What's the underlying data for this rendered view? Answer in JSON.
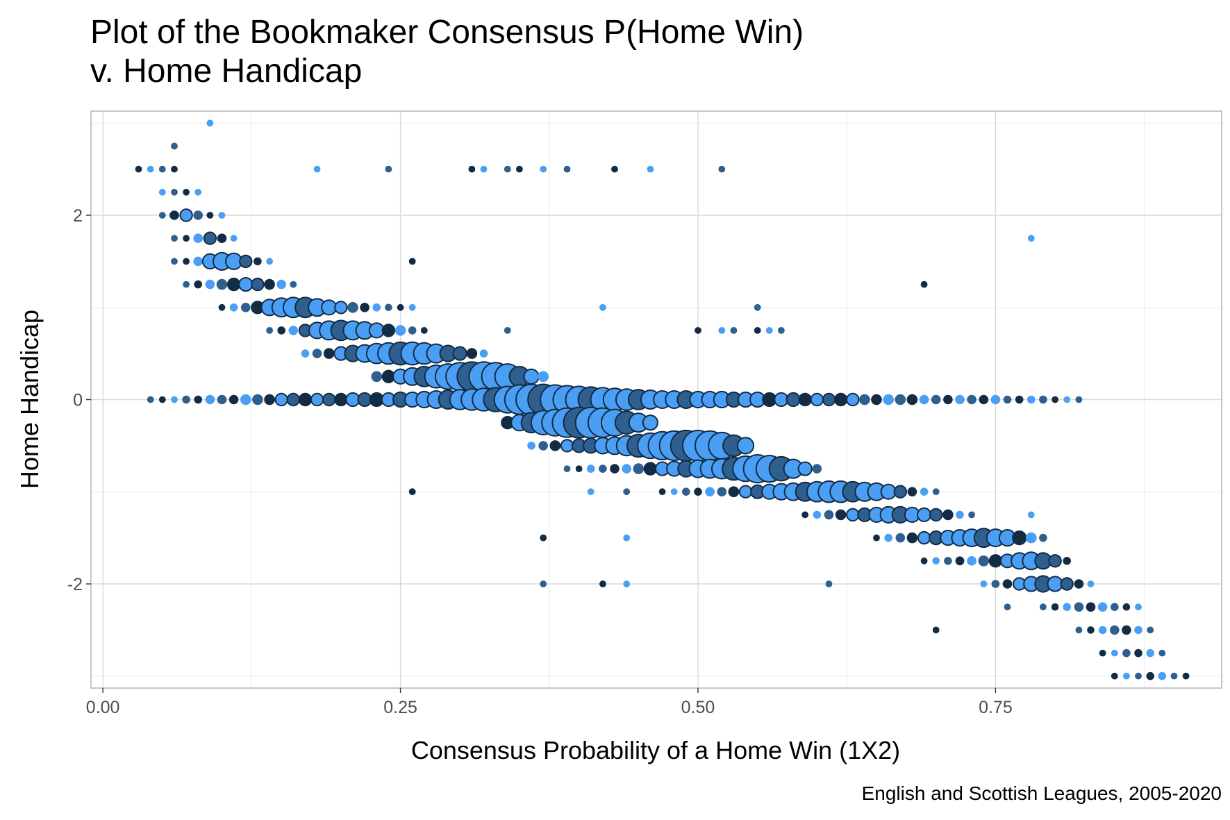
{
  "chart_data": {
    "type": "scatter",
    "title_lines": [
      "Plot of the Bookmaker Consensus P(Home Win)",
      "v. Home Handicap"
    ],
    "xlabel": "Consensus Probability of a Home Win (1X2)",
    "ylabel": "Home Handicap",
    "caption": "English and Scottish Leagues, 2005-2020",
    "xlim": [
      -0.01,
      0.94
    ],
    "ylim": [
      -3.13,
      3.13
    ],
    "x_ticks": [
      0,
      0.25,
      0.5,
      0.75
    ],
    "x_tick_labels": [
      "0.00",
      "0.25",
      "0.50",
      "0.75"
    ],
    "y_ticks": [
      2,
      0,
      -2
    ],
    "y_tick_labels": [
      "2",
      "0",
      "-2"
    ],
    "grid": true,
    "legend": "none",
    "colors": {
      "light": "#4a9ff5",
      "mid": "#2f5f8f",
      "dark": "#132b43",
      "outline": "#132b43",
      "panel_border": "#b3b3b3",
      "grid_major": "#d9d9d9",
      "grid_minor": "#ebebeb"
    },
    "series": [
      {
        "y": 3.0,
        "x0": 0.09,
        "x1": 0.09,
        "weights": [
          0.1
        ]
      },
      {
        "y": 2.75,
        "x0": 0.06,
        "x1": 0.06,
        "weights": [
          0.1
        ]
      },
      {
        "y": 2.5,
        "x0": 0.03,
        "x1": 0.06,
        "weights": [
          0.1,
          0.1,
          0.1,
          0.1
        ]
      },
      {
        "y": 2.25,
        "x0": 0.05,
        "x1": 0.08,
        "weights": [
          0.1,
          0.1,
          0.1,
          0.1
        ]
      },
      {
        "y": 2.0,
        "x0": 0.05,
        "x1": 0.1,
        "weights": [
          0.1,
          0.2,
          0.3,
          0.2,
          0.1,
          0.1
        ]
      },
      {
        "y": 1.75,
        "x0": 0.06,
        "x1": 0.11,
        "weights": [
          0.1,
          0.1,
          0.2,
          0.3,
          0.2,
          0.1
        ]
      },
      {
        "y": 1.5,
        "x0": 0.06,
        "x1": 0.14,
        "weights": [
          0.1,
          0.1,
          0.2,
          0.4,
          0.5,
          0.45,
          0.3,
          0.15,
          0.1
        ]
      },
      {
        "y": 1.25,
        "x0": 0.07,
        "x1": 0.16,
        "weights": [
          0.1,
          0.15,
          0.2,
          0.25,
          0.3,
          0.35,
          0.3,
          0.25,
          0.2,
          0.1
        ]
      },
      {
        "y": 1.0,
        "x0": 0.1,
        "x1": 0.26,
        "weights": [
          0.1,
          0.15,
          0.2,
          0.3,
          0.45,
          0.55,
          0.6,
          0.6,
          0.5,
          0.4,
          0.3,
          0.25,
          0.2,
          0.15,
          0.12,
          0.1,
          0.1
        ]
      },
      {
        "y": 0.75,
        "x0": 0.14,
        "x1": 0.27,
        "weights": [
          0.1,
          0.15,
          0.2,
          0.3,
          0.45,
          0.55,
          0.6,
          0.55,
          0.5,
          0.4,
          0.3,
          0.25,
          0.15,
          0.1
        ]
      },
      {
        "y": 0.5,
        "x0": 0.17,
        "x1": 0.32,
        "weights": [
          0.15,
          0.2,
          0.25,
          0.35,
          0.45,
          0.5,
          0.6,
          0.65,
          0.7,
          0.7,
          0.65,
          0.55,
          0.45,
          0.35,
          0.25,
          0.15
        ]
      },
      {
        "y": 0.25,
        "x0": 0.23,
        "x1": 0.37,
        "weights": [
          0.25,
          0.3,
          0.4,
          0.5,
          0.6,
          0.7,
          0.8,
          0.9,
          0.95,
          0.95,
          0.9,
          0.8,
          0.6,
          0.4,
          0.25
        ]
      },
      {
        "y": 0.0,
        "x0": 0.04,
        "x1": 0.82,
        "weights": [
          0.1,
          0.1,
          0.1,
          0.15,
          0.15,
          0.2,
          0.2,
          0.2,
          0.25,
          0.25,
          0.25,
          0.3,
          0.3,
          0.3,
          0.3,
          0.3,
          0.3,
          0.35,
          0.35,
          0.35,
          0.35,
          0.4,
          0.4,
          0.45,
          0.5,
          0.55,
          0.6,
          0.65,
          0.7,
          0.75,
          0.85,
          0.95,
          1.0,
          1.0,
          0.95,
          0.9,
          0.85,
          0.8,
          0.75,
          0.7,
          0.65,
          0.6,
          0.55,
          0.5,
          0.5,
          0.5,
          0.45,
          0.45,
          0.45,
          0.4,
          0.4,
          0.4,
          0.35,
          0.35,
          0.35,
          0.3,
          0.3,
          0.3,
          0.3,
          0.3,
          0.25,
          0.25,
          0.25,
          0.25,
          0.25,
          0.2,
          0.2,
          0.2,
          0.2,
          0.2,
          0.2,
          0.2,
          0.15,
          0.15,
          0.15,
          0.15,
          0.1,
          0.1,
          0.1
        ]
      },
      {
        "y": -0.25,
        "x0": 0.34,
        "x1": 0.46,
        "weights": [
          0.3,
          0.45,
          0.6,
          0.75,
          0.85,
          0.95,
          1.0,
          1.0,
          0.95,
          0.85,
          0.7,
          0.55,
          0.4
        ]
      },
      {
        "y": -0.5,
        "x0": 0.36,
        "x1": 0.54,
        "weights": [
          0.15,
          0.2,
          0.25,
          0.3,
          0.35,
          0.4,
          0.45,
          0.5,
          0.6,
          0.7,
          0.8,
          0.9,
          0.95,
          1.0,
          1.0,
          0.95,
          0.85,
          0.65,
          0.45
        ]
      },
      {
        "y": -0.75,
        "x0": 0.39,
        "x1": 0.6,
        "weights": [
          0.1,
          0.1,
          0.15,
          0.15,
          0.2,
          0.2,
          0.25,
          0.3,
          0.35,
          0.4,
          0.45,
          0.5,
          0.55,
          0.6,
          0.7,
          0.8,
          0.9,
          0.85,
          0.75,
          0.55,
          0.35,
          0.2
        ]
      },
      {
        "y": -1.0,
        "x0": 0.47,
        "x1": 0.7,
        "weights": [
          0.1,
          0.1,
          0.15,
          0.15,
          0.2,
          0.2,
          0.25,
          0.3,
          0.35,
          0.4,
          0.45,
          0.5,
          0.55,
          0.6,
          0.65,
          0.65,
          0.6,
          0.55,
          0.5,
          0.4,
          0.3,
          0.2,
          0.15,
          0.1
        ]
      },
      {
        "y": -1.25,
        "x0": 0.59,
        "x1": 0.73,
        "weights": [
          0.1,
          0.15,
          0.2,
          0.25,
          0.3,
          0.35,
          0.4,
          0.45,
          0.45,
          0.4,
          0.35,
          0.3,
          0.25,
          0.15,
          0.1
        ]
      },
      {
        "y": -1.5,
        "x0": 0.65,
        "x1": 0.79,
        "weights": [
          0.1,
          0.15,
          0.2,
          0.25,
          0.3,
          0.35,
          0.4,
          0.45,
          0.5,
          0.55,
          0.5,
          0.45,
          0.35,
          0.25,
          0.15
        ]
      },
      {
        "y": -1.75,
        "x0": 0.69,
        "x1": 0.81,
        "weights": [
          0.1,
          0.12,
          0.15,
          0.18,
          0.2,
          0.25,
          0.3,
          0.35,
          0.45,
          0.5,
          0.45,
          0.3,
          0.15
        ]
      },
      {
        "y": -2.0,
        "x0": 0.74,
        "x1": 0.83,
        "weights": [
          0.1,
          0.15,
          0.2,
          0.3,
          0.4,
          0.45,
          0.4,
          0.3,
          0.2,
          0.1
        ]
      },
      {
        "y": -2.25,
        "x0": 0.79,
        "x1": 0.87,
        "weights": [
          0.1,
          0.12,
          0.15,
          0.2,
          0.2,
          0.2,
          0.15,
          0.12,
          0.1
        ]
      },
      {
        "y": -2.5,
        "x0": 0.82,
        "x1": 0.88,
        "weights": [
          0.1,
          0.12,
          0.15,
          0.2,
          0.2,
          0.15,
          0.1
        ]
      },
      {
        "y": -2.75,
        "x0": 0.84,
        "x1": 0.89,
        "weights": [
          0.1,
          0.1,
          0.15,
          0.15,
          0.15,
          0.1
        ]
      },
      {
        "y": -3.0,
        "x0": 0.85,
        "x1": 0.91,
        "weights": [
          0.1,
          0.1,
          0.1,
          0.15,
          0.15,
          0.1,
          0.1
        ]
      }
    ],
    "scattered_points": [
      [
        0.18,
        2.5
      ],
      [
        0.24,
        2.5
      ],
      [
        0.31,
        2.5
      ],
      [
        0.32,
        2.5
      ],
      [
        0.34,
        2.5
      ],
      [
        0.35,
        2.5
      ],
      [
        0.37,
        2.5
      ],
      [
        0.39,
        2.5
      ],
      [
        0.43,
        2.5
      ],
      [
        0.46,
        2.5
      ],
      [
        0.52,
        2.5
      ],
      [
        0.26,
        1.5
      ],
      [
        0.42,
        1.0
      ],
      [
        0.55,
        1.0
      ],
      [
        0.69,
        1.25
      ],
      [
        0.78,
        1.75
      ],
      [
        0.34,
        0.75
      ],
      [
        0.5,
        0.75
      ],
      [
        0.52,
        0.75
      ],
      [
        0.53,
        0.75
      ],
      [
        0.55,
        0.75
      ],
      [
        0.56,
        0.75
      ],
      [
        0.57,
        0.75
      ],
      [
        0.26,
        -1.0
      ],
      [
        0.41,
        -1.0
      ],
      [
        0.44,
        -1.0
      ],
      [
        0.37,
        -1.5
      ],
      [
        0.44,
        -1.5
      ],
      [
        0.37,
        -2.0
      ],
      [
        0.42,
        -2.0
      ],
      [
        0.44,
        -2.0
      ],
      [
        0.61,
        -2.0
      ],
      [
        0.7,
        -2.5
      ],
      [
        0.78,
        -1.25
      ],
      [
        0.76,
        -2.25
      ]
    ]
  }
}
